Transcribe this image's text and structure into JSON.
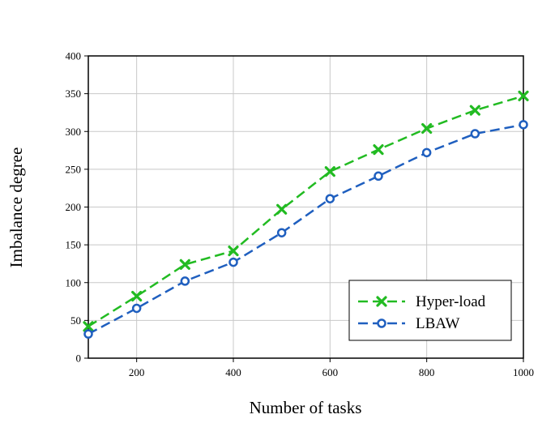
{
  "chart_data": {
    "type": "line",
    "xlabel": "Number of tasks",
    "ylabel": "Imbalance degree",
    "xlim": [
      100,
      1000
    ],
    "ylim": [
      0,
      400
    ],
    "x_ticks": [
      200,
      400,
      600,
      800,
      1000
    ],
    "y_ticks": [
      0,
      50,
      100,
      150,
      200,
      250,
      300,
      350,
      400
    ],
    "grid": true,
    "legend_position": "bottom-right",
    "x": [
      100,
      200,
      300,
      400,
      500,
      600,
      700,
      800,
      900,
      1000
    ],
    "series": [
      {
        "name": "Hyper-load",
        "color": "#22bb22",
        "marker": "x",
        "line_style": "dashed",
        "values": [
          42,
          82,
          124,
          142,
          197,
          247,
          276,
          304,
          328,
          347
        ]
      },
      {
        "name": "LBAW",
        "color": "#1f5fbf",
        "marker": "circle",
        "line_style": "dashed",
        "values": [
          32,
          66,
          102,
          127,
          166,
          211,
          241,
          272,
          297,
          309
        ]
      }
    ]
  }
}
